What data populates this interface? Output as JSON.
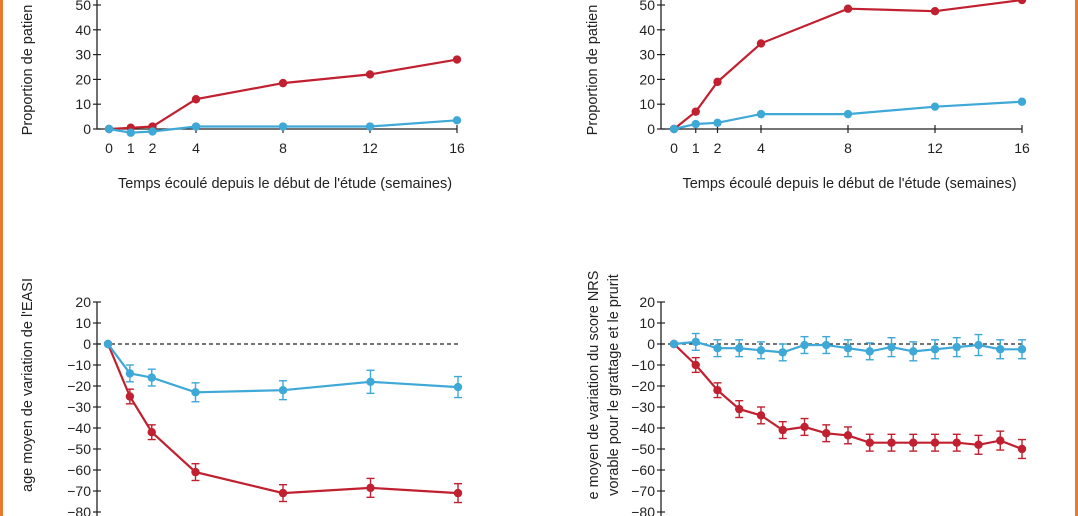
{
  "colors": {
    "red": "#c0202f",
    "blue": "#3ea8d6",
    "border": "#e8792f",
    "axis": "#222222"
  },
  "chart_data": [
    {
      "id": "tl",
      "type": "line",
      "xlabel": "Temps écoulé depuis le début de l'étude (semaines)",
      "ylabel": "Proportion de patien",
      "x_ticks": [
        0,
        1,
        2,
        4,
        8,
        12,
        16
      ],
      "y_ticks": [
        0,
        10,
        20,
        30,
        40,
        50
      ],
      "y_tick_labels": [
        "0",
        "10",
        "20",
        "30",
        "40",
        "50"
      ],
      "xlim": [
        0,
        16
      ],
      "ylim": [
        0,
        50
      ],
      "series": [
        {
          "color": "red",
          "x": [
            0,
            1,
            2,
            4,
            8,
            12,
            16
          ],
          "y": [
            0,
            0.5,
            1,
            12,
            18.5,
            22,
            28
          ]
        },
        {
          "color": "blue",
          "x": [
            0,
            1,
            2,
            4,
            8,
            12,
            16
          ],
          "y": [
            0,
            -1.5,
            -1,
            1,
            1,
            1,
            3.5
          ]
        }
      ]
    },
    {
      "id": "tr",
      "type": "line",
      "xlabel": "Temps écoulé depuis le début de l'étude (semaines)",
      "ylabel": "Proportion de patien",
      "x_ticks": [
        0,
        1,
        2,
        4,
        8,
        12,
        16
      ],
      "y_ticks": [
        0,
        10,
        20,
        30,
        40,
        50
      ],
      "y_tick_labels": [
        "0",
        "10",
        "20",
        "30",
        "40",
        "50"
      ],
      "xlim": [
        0,
        16
      ],
      "ylim": [
        0,
        50
      ],
      "series": [
        {
          "color": "red",
          "x": [
            0,
            1,
            2,
            4,
            8,
            12,
            16
          ],
          "y": [
            0,
            7,
            19,
            34.5,
            48.5,
            47.5,
            52
          ]
        },
        {
          "color": "blue",
          "x": [
            0,
            1,
            2,
            4,
            8,
            12,
            16
          ],
          "y": [
            0,
            2,
            2.5,
            6,
            6,
            9,
            11
          ]
        }
      ]
    },
    {
      "id": "bl",
      "type": "line",
      "ylabel": "age moyen de variation de l'EASI",
      "ylabel2": "",
      "y_ticks": [
        20,
        10,
        0,
        -10,
        -20,
        -30,
        -40,
        -50,
        -60,
        -70,
        -80
      ],
      "y_tick_labels": [
        "20",
        "10",
        "0",
        "−10",
        "−20",
        "−30",
        "−40",
        "−50",
        "−60",
        "−70",
        "−80"
      ],
      "xlim": [
        0,
        16
      ],
      "ylim": [
        -80,
        20
      ],
      "reference_line": 0,
      "series": [
        {
          "color": "red",
          "x": [
            0,
            1,
            2,
            4,
            8,
            12,
            16
          ],
          "y": [
            0,
            -25,
            -42,
            -61,
            -71,
            -68.5,
            -71
          ],
          "err": [
            0,
            3.5,
            3.5,
            4,
            4,
            4.5,
            4.5
          ]
        },
        {
          "color": "blue",
          "x": [
            0,
            1,
            2,
            4,
            8,
            12,
            16
          ],
          "y": [
            0,
            -14,
            -16,
            -23,
            -22,
            -18,
            -20.5
          ],
          "err": [
            0,
            4,
            4,
            4.5,
            4.5,
            5.5,
            5
          ]
        }
      ]
    },
    {
      "id": "br",
      "type": "line",
      "ylabel": "e moyen de variation du score NRS",
      "ylabel2": "vorable pour le grattage et le prurit",
      "y_ticks": [
        20,
        10,
        0,
        -10,
        -20,
        -30,
        -40,
        -50,
        -60,
        -70,
        -80
      ],
      "y_tick_labels": [
        "20",
        "10",
        "0",
        "−10",
        "−20",
        "−30",
        "−40",
        "−50",
        "−60",
        "−70",
        "−80"
      ],
      "xlim": [
        0,
        16
      ],
      "ylim": [
        -80,
        20
      ],
      "reference_line": 0,
      "series": [
        {
          "color": "red",
          "x": [
            0,
            1,
            2,
            3,
            4,
            5,
            6,
            7,
            8,
            9,
            10,
            11,
            12,
            13,
            14,
            15,
            16
          ],
          "y": [
            0,
            -10,
            -22,
            -31,
            -34,
            -41,
            -39.5,
            -42.5,
            -43.5,
            -47,
            -47,
            -47,
            -47,
            -47,
            -48,
            -46,
            -50
          ],
          "err": [
            0,
            3.5,
            3.5,
            4,
            4,
            4,
            4,
            4,
            4,
            4,
            4,
            4,
            4,
            4,
            4.5,
            4.5,
            4.5
          ]
        },
        {
          "color": "blue",
          "x": [
            0,
            1,
            2,
            3,
            4,
            5,
            6,
            7,
            8,
            9,
            10,
            11,
            12,
            13,
            14,
            15,
            16
          ],
          "y": [
            0,
            1,
            -2,
            -2,
            -3,
            -4,
            -0.5,
            -0.5,
            -2,
            -3.5,
            -1.5,
            -3.5,
            -2.5,
            -1.5,
            -0.5,
            -2.5,
            -2.5
          ],
          "err": [
            0,
            4,
            4,
            4,
            4,
            4,
            4,
            4,
            4,
            4,
            4.5,
            4.5,
            4.5,
            4.5,
            5,
            4.5,
            4.5
          ]
        }
      ]
    }
  ]
}
